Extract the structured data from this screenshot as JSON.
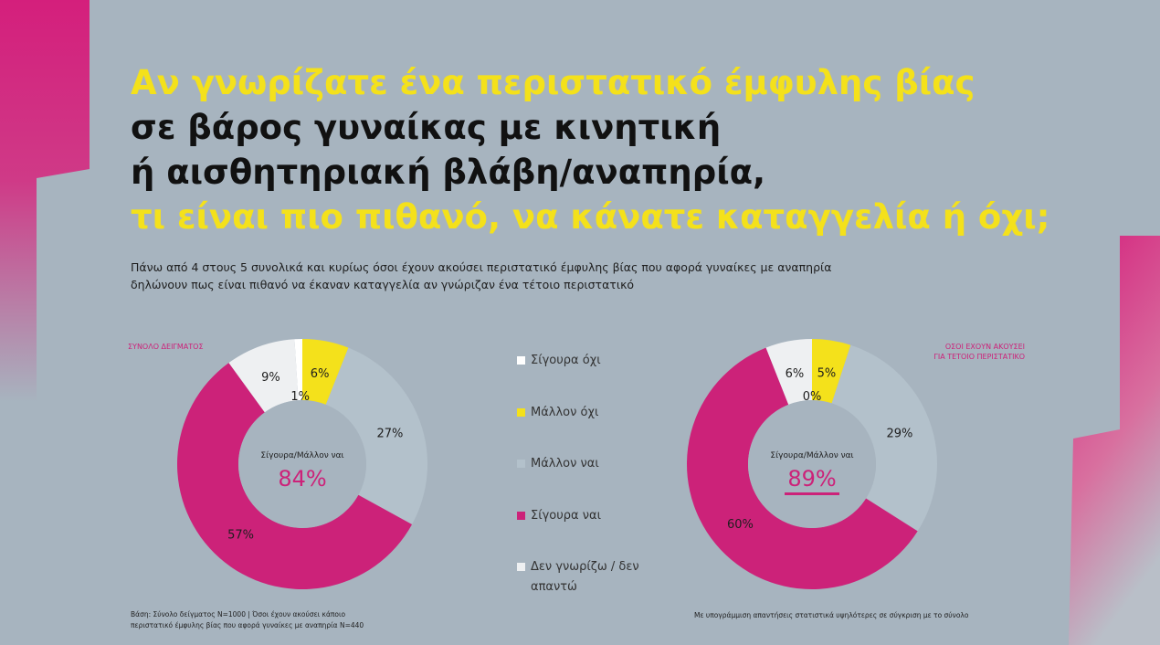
{
  "title_lines": [
    {
      "text": "Αν γνωρίζατε ένα περιστατικό έμφυλης βίας",
      "color": "#f4e11b"
    },
    {
      "text": "σε βάρος γυναίκας με κινητική",
      "color": "#111111"
    },
    {
      "text": "ή αισθητηριακή βλάβη/αναπηρία,",
      "color": "#111111"
    },
    {
      "text": "τι είναι πιο πιθανό, να κάνατε καταγγελία ή όχι;",
      "color": "#f4e11b"
    }
  ],
  "subtitle_lines": [
    "Πάνω από 4 στους 5 συνολικά και κυρίως όσοι έχουν ακούσει περιστατικό έμφυλης βίας που αφορά γυναίκες με αναπηρία",
    "δηλώνουν πως είναι πιθανό να έκαναν καταγγελία αν γνώριζαν ένα τέτοιο περιστατικό"
  ],
  "chart_data": [
    {
      "type": "donut",
      "title": [
        "ΣΥΝΟΛΟ ΔΕΙΓΜΑΤΟΣ"
      ],
      "categories": [
        "Σίγουρα όχι",
        "Μάλλον όχι",
        "Μάλλον ναι",
        "Σίγουρα ναι",
        "Δεν γνωρίζω / δεν απαντώ"
      ],
      "colors": [
        "#ffffff",
        "#f4e11b",
        "#b3c1cb",
        "#cc2279",
        "#eef0f2"
      ],
      "values": [
        1,
        6,
        27,
        57,
        9
      ],
      "value_labels": [
        "1%",
        "6%",
        "27%",
        "57%",
        "9%"
      ],
      "center_label": "Σίγουρα/Μάλλον ναι",
      "center_value": "84%",
      "center_underline": false
    },
    {
      "type": "donut",
      "title": [
        "ΟΣΟΙ ΕΧΟΥΝ ΑΚΟΥΣΕΙ",
        "ΓΙΑ ΤΕΤΟΙΟ ΠΕΡΙΣΤΑΤΙΚΟ"
      ],
      "colors": [
        "#ffffff",
        "#f4e11b",
        "#b3c1cb",
        "#cc2279",
        "#eef0f2"
      ],
      "values": [
        0,
        5,
        29,
        60,
        6
      ],
      "value_labels": [
        "0%",
        "5%",
        "29%",
        "60%",
        "6%"
      ],
      "center_label": "Σίγουρα/Μάλλον ναι",
      "center_value": "89%",
      "center_underline": true
    }
  ],
  "footnote_left": [
    "Βάση: Σύνολο δείγματος Ν=1000 | Όσοι έχουν ακούσει κάποιο",
    "περιστατικό έμφυλης βίας που αφορά γυναίκες με αναπηρία  Ν=440"
  ],
  "footnote_right": "Με υπογράμμιση απαντήσεις στατιστικά υψηλότερες σε σύγκριση με το σύνολο"
}
